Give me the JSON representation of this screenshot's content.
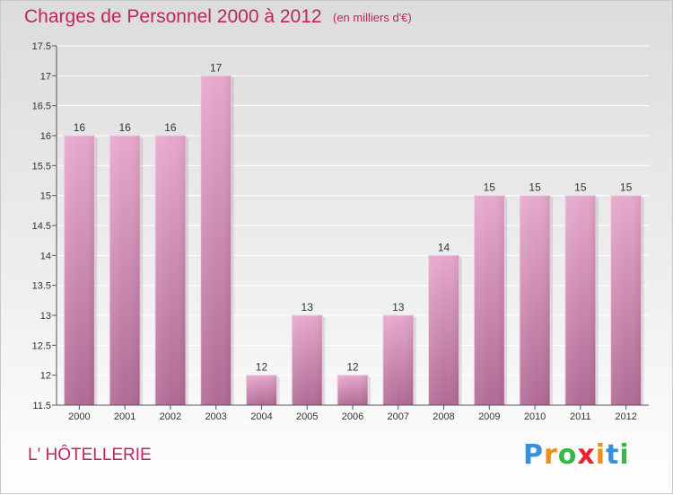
{
  "header": {
    "title": "Charges de Personnel 2000 à 2012",
    "subtitle": "(en milliers d'€)"
  },
  "footer": {
    "commune": "L' HÔTELLERIE",
    "logo": {
      "letters": [
        "P",
        "r",
        "o",
        "x",
        "i",
        "t",
        "i"
      ],
      "colors": [
        "#3a8fd6",
        "#f08c1a",
        "#3ab54a",
        "#e8232a",
        "#f08c1a",
        "#3a8fd6",
        "#3ab54a"
      ]
    }
  },
  "chart_data": {
    "type": "bar",
    "categories": [
      "2000",
      "2001",
      "2002",
      "2003",
      "2004",
      "2005",
      "2006",
      "2007",
      "2008",
      "2009",
      "2010",
      "2011",
      "2012"
    ],
    "values": [
      16,
      16,
      16,
      17,
      12,
      13,
      12,
      13,
      14,
      15,
      15,
      15,
      15
    ],
    "data_labels": [
      "16",
      "16",
      "16",
      "17",
      "12",
      "13",
      "12",
      "13",
      "14",
      "15",
      "15",
      "15",
      "15"
    ],
    "ylim": [
      11.5,
      17.5
    ],
    "yticks": [
      11.5,
      12,
      12.5,
      13,
      13.5,
      14,
      14.5,
      15,
      15.5,
      16,
      16.5,
      17,
      17.5
    ],
    "ytick_labels": [
      "11.5",
      "12",
      "12.5",
      "13",
      "13.5",
      "14",
      "14.5",
      "15",
      "15.5",
      "16",
      "16.5",
      "17",
      "17.5"
    ],
    "grid": true,
    "colors": {
      "bar_top": "#e6a8cc",
      "bar_bottom": "#b06a94",
      "grid": "#ffffff",
      "axis": "#555555"
    }
  }
}
